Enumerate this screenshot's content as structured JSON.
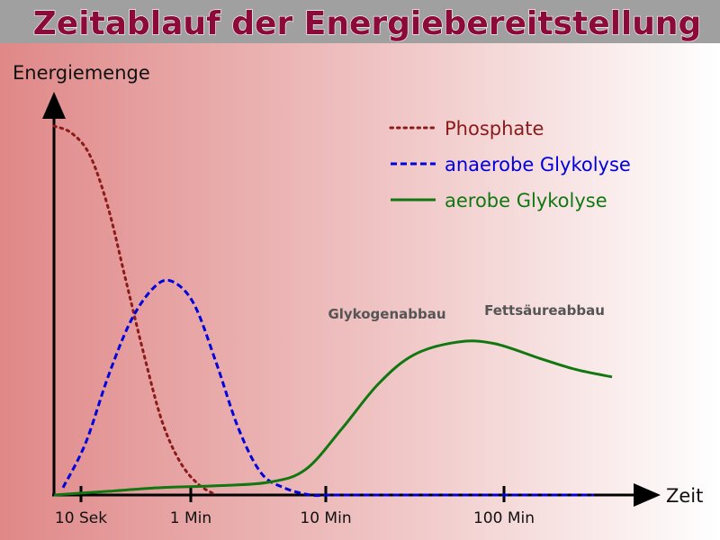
{
  "chart_data": {
    "type": "line",
    "title": "Zeitablauf der Energiebereitstellung",
    "xlabel": "Zeit",
    "ylabel": "Energiemenge",
    "categories": [
      "10 Sek",
      "1 Min",
      "10 Min",
      "100 Min"
    ],
    "grid": false,
    "legend_placement": "top-right",
    "series": [
      {
        "name": "Phosphate",
        "style": "dotted",
        "color": "#8b1a1a",
        "x": [
          0,
          0.2,
          0.4,
          0.6,
          0.8,
          1.0,
          1.2,
          1.4,
          1.6,
          1.8
        ],
        "y": [
          100,
          98,
          92,
          78,
          58,
          38,
          20,
          9,
          3,
          0
        ]
      },
      {
        "name": "anaerobe Glykolyse",
        "style": "dashed",
        "color": "#0000dd",
        "x": [
          0.1,
          0.35,
          0.6,
          0.85,
          1.1,
          1.3,
          1.55,
          1.8,
          2.05,
          2.3,
          2.55,
          2.85,
          3.1,
          4.0,
          5.0,
          6.0
        ],
        "y": [
          2,
          14,
          32,
          47,
          56,
          58,
          52,
          36,
          18,
          6,
          2,
          0,
          0,
          0,
          0,
          0
        ]
      },
      {
        "name": "aerobe Glykolyse",
        "style": "solid",
        "color": "#117711",
        "x": [
          0,
          0.6,
          1.2,
          1.8,
          2.4,
          2.8,
          3.2,
          3.6,
          4.0,
          4.5,
          4.9,
          5.4,
          5.8,
          6.2
        ],
        "y": [
          0,
          1,
          2,
          2.5,
          3.5,
          7,
          18,
          30,
          38,
          41.5,
          41,
          37,
          34,
          32
        ]
      }
    ],
    "annotations": [
      {
        "text": "Glykogenabbau",
        "x": 3.7,
        "y": 49
      },
      {
        "text": "Fettsäureabbau",
        "x": 5.45,
        "y": 50
      }
    ]
  },
  "colors": {
    "title": "#8b0a3a",
    "title_bar": "#a0a0a0",
    "background_left": "#e08888",
    "background_right": "#ffffff"
  }
}
